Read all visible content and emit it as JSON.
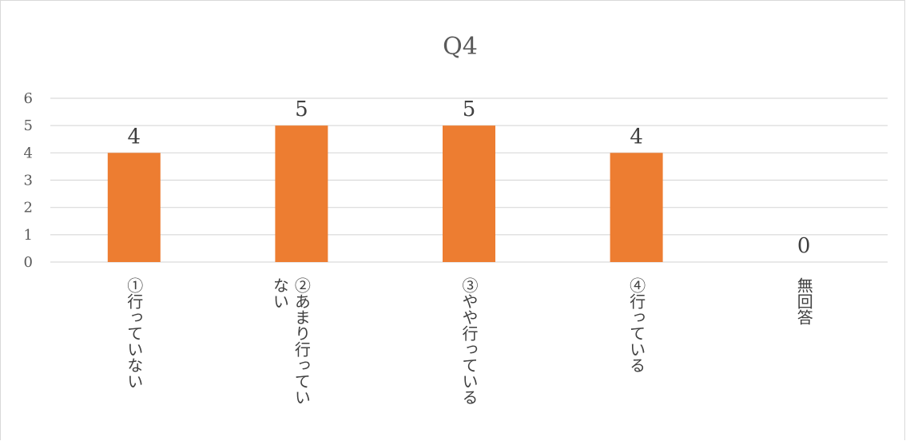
{
  "chart_data": {
    "type": "bar",
    "title": "Q4",
    "categories": [
      "①行っていない",
      "②あまり行っていない",
      "③やや行っている",
      "④行っている",
      "無回答"
    ],
    "category_lines": [
      [
        "①行っていない"
      ],
      [
        "②あまり行ってい",
        "ない"
      ],
      [
        "③やや行っている"
      ],
      [
        "④行っている"
      ],
      [
        "無回答"
      ]
    ],
    "values": [
      4,
      5,
      5,
      4,
      0
    ],
    "ylim": [
      0,
      6
    ],
    "yticks": [
      0,
      1,
      2,
      3,
      4,
      5,
      6
    ],
    "xlabel": "",
    "ylabel": "",
    "grid": true,
    "data_labels": true,
    "bar_color": "#ED7D31",
    "grid_color": "#D9D9D9"
  }
}
